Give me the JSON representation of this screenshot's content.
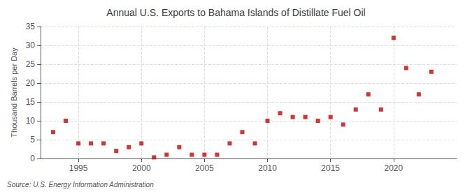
{
  "chart_data": {
    "type": "scatter",
    "title": "Annual U.S. Exports to Bahama Islands of Distillate Fuel Oil",
    "ylabel": "Thousand Barrels per Day",
    "source": "Source: U.S. Energy Information Administration",
    "x": [
      1993,
      1994,
      1995,
      1996,
      1997,
      1998,
      1999,
      2000,
      2001,
      2002,
      2003,
      2004,
      2005,
      2006,
      2007,
      2008,
      2009,
      2010,
      2011,
      2012,
      2013,
      2014,
      2015,
      2016,
      2017,
      2018,
      2019,
      2020,
      2021,
      2022,
      2023
    ],
    "values": [
      7,
      10,
      4,
      4,
      4,
      2,
      3,
      4,
      0.3,
      1,
      3,
      1,
      1,
      1,
      4,
      7,
      4,
      10,
      12,
      11,
      11,
      10,
      11,
      9,
      13,
      17,
      13,
      32,
      24,
      17,
      23
    ],
    "color": "#cc0000",
    "marker": "square",
    "xlim": [
      1992.0,
      2025.0
    ],
    "xticks": [
      1995,
      2000,
      2005,
      2010,
      2015,
      2020
    ],
    "ylim": [
      0,
      35
    ],
    "yticks": [
      0,
      5,
      10,
      15,
      20,
      25,
      30,
      35
    ],
    "grid": true
  }
}
